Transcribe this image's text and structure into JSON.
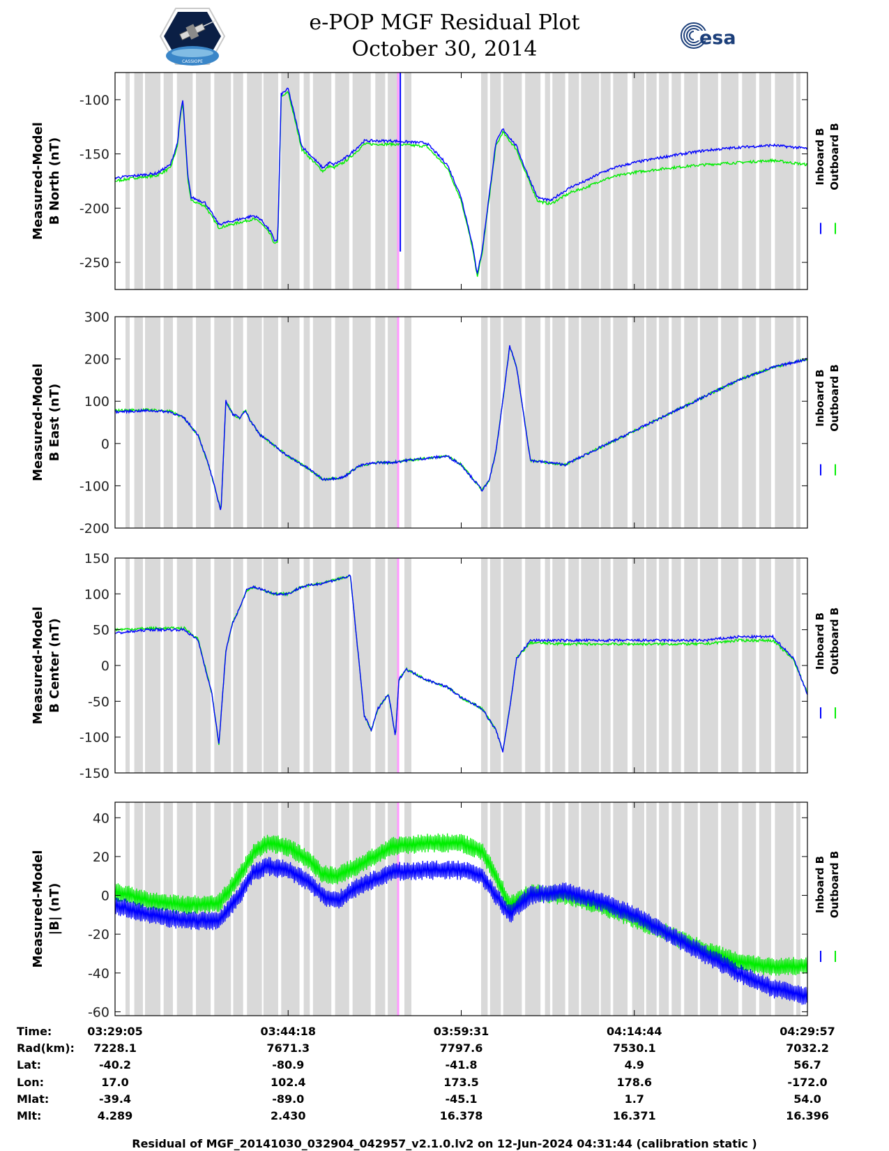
{
  "title_line1": "e-POP MGF Residual Plot",
  "title_line2": "October 30, 2014",
  "logo_right_text": "esa",
  "logo_left_text": "CASSIOPE",
  "footer": "Residual of MGF_20141030_032904_042957_v2.1.0.lv2 on 12-Jun-2024 04:31:44 (calibration static )",
  "colors": {
    "inboard": "#0000ff",
    "outboard": "#00ee00",
    "shade": "#d9d9d9",
    "marker": "#ff99ff"
  },
  "chart_data": {
    "type": "line",
    "x_ticks": [
      "03:29:05",
      "03:44:18",
      "03:59:31",
      "04:14:44",
      "04:29:57"
    ],
    "legend": [
      "Inboard B",
      "Outboard B"
    ],
    "panels": [
      {
        "ylabel": [
          "Measured-Model",
          "B North (nT)"
        ],
        "ylim": [
          -275,
          -75
        ],
        "yticks": [
          -100,
          -150,
          -200,
          -250
        ],
        "x": [
          0,
          3,
          6,
          8,
          9,
          9.5,
          9.8,
          10.5,
          11,
          13,
          15,
          20,
          21,
          22.5,
          23,
          23.5,
          24,
          25,
          27,
          30,
          31,
          31.5,
          33,
          34,
          36,
          40,
          45,
          48,
          50,
          51.5,
          52.3,
          53,
          55,
          56,
          58,
          59,
          60,
          61,
          62,
          63,
          64,
          66,
          68,
          70,
          72,
          75,
          80,
          85,
          90,
          95,
          100
        ],
        "inboard": [
          -172,
          -170,
          -168,
          -160,
          -140,
          -110,
          -100,
          -170,
          -190,
          -195,
          -215,
          -207,
          -210,
          -222,
          -230,
          -229,
          -95,
          -90,
          -143,
          -163,
          -158,
          -160,
          -155,
          -150,
          -138,
          -138,
          -140,
          -160,
          -190,
          -230,
          -260,
          -240,
          -140,
          -127,
          -143,
          -160,
          -175,
          -190,
          -192,
          -193,
          -188,
          -180,
          -175,
          -168,
          -163,
          -158,
          -152,
          -147,
          -144,
          -142,
          -145
        ],
        "outboard": [
          -175,
          -172,
          -170,
          -163,
          -143,
          -112,
          -103,
          -173,
          -193,
          -198,
          -218,
          -210,
          -213,
          -225,
          -233,
          -232,
          -98,
          -93,
          -146,
          -166,
          -161,
          -163,
          -158,
          -153,
          -141,
          -141,
          -143,
          -163,
          -193,
          -233,
          -263,
          -243,
          -143,
          -130,
          -146,
          -163,
          -178,
          -193,
          -195,
          -196,
          -192,
          -185,
          -181,
          -175,
          -171,
          -167,
          -163,
          -160,
          -158,
          -156,
          -160
        ],
        "spike": [
          41.2,
          -75,
          -240
        ]
      },
      {
        "ylabel": [
          "Measured-Model",
          "B East (nT)"
        ],
        "ylim": [
          -200,
          300
        ],
        "yticks": [
          300,
          200,
          100,
          0,
          -100,
          -200
        ],
        "x": [
          0,
          5,
          8,
          10,
          12,
          13.5,
          14.5,
          15.3,
          16,
          17,
          18,
          18.8,
          19.5,
          21,
          25,
          28,
          30,
          33,
          35,
          36,
          38,
          40,
          42,
          45,
          48,
          50,
          52,
          53,
          54,
          55,
          56,
          57,
          58,
          60,
          65,
          70,
          75,
          80,
          85,
          90,
          95,
          100
        ],
        "inboard": [
          75,
          78,
          75,
          60,
          20,
          -50,
          -110,
          -160,
          100,
          70,
          60,
          80,
          55,
          20,
          -30,
          -60,
          -85,
          -80,
          -55,
          -50,
          -45,
          -45,
          -40,
          -35,
          -30,
          -50,
          -90,
          -110,
          -90,
          -20,
          100,
          230,
          180,
          -40,
          -50,
          -10,
          30,
          70,
          110,
          150,
          180,
          200
        ],
        "outboard": [
          78,
          80,
          76,
          60,
          20,
          -50,
          -110,
          -160,
          100,
          70,
          60,
          80,
          55,
          20,
          -30,
          -60,
          -85,
          -80,
          -55,
          -50,
          -45,
          -45,
          -40,
          -35,
          -30,
          -50,
          -90,
          -110,
          -90,
          -20,
          100,
          230,
          180,
          -40,
          -50,
          -10,
          30,
          70,
          110,
          150,
          180,
          200
        ]
      },
      {
        "ylabel": [
          "Measured-Model",
          "B Center (nT)"
        ],
        "ylim": [
          -150,
          150
        ],
        "yticks": [
          150,
          100,
          50,
          0,
          -50,
          -100,
          -150
        ],
        "x": [
          0,
          5,
          10,
          12,
          14,
          15,
          16,
          17,
          18,
          19,
          20,
          23,
          25,
          27,
          30,
          34,
          36,
          37,
          38,
          39.5,
          40.5,
          41,
          42,
          45,
          48,
          50,
          53,
          55,
          56,
          57,
          58,
          60,
          65,
          70,
          75,
          80,
          85,
          90,
          95,
          98,
          100
        ],
        "inboard": [
          45,
          50,
          50,
          35,
          -40,
          -110,
          20,
          60,
          80,
          105,
          110,
          100,
          100,
          110,
          115,
          125,
          -70,
          -90,
          -60,
          -40,
          -100,
          -20,
          -5,
          -20,
          -30,
          -45,
          -60,
          -90,
          -120,
          -60,
          10,
          35,
          35,
          35,
          35,
          35,
          35,
          40,
          40,
          10,
          -40
        ],
        "outboard": [
          50,
          52,
          52,
          37,
          -40,
          -110,
          20,
          60,
          80,
          105,
          110,
          100,
          100,
          110,
          115,
          125,
          -70,
          -90,
          -60,
          -40,
          -100,
          -20,
          -5,
          -20,
          -30,
          -45,
          -60,
          -90,
          -120,
          -60,
          10,
          32,
          30,
          30,
          30,
          30,
          30,
          35,
          35,
          8,
          -38
        ]
      },
      {
        "ylabel": [
          "Measured-Model",
          "|B| (nT)"
        ],
        "ylim": [
          -62,
          48
        ],
        "yticks": [
          40,
          20,
          0,
          -20,
          -40,
          -60
        ],
        "x": [
          0,
          5,
          10,
          15,
          18,
          20,
          22,
          25,
          28,
          30,
          32,
          35,
          40,
          45,
          50,
          53,
          55,
          57,
          58,
          60,
          65,
          70,
          75,
          80,
          85,
          90,
          95,
          100
        ],
        "inboard": [
          -5,
          -10,
          -13,
          -13,
          0,
          12,
          15,
          13,
          7,
          0,
          -3,
          4,
          12,
          13,
          13,
          10,
          0,
          -10,
          -6,
          0,
          2,
          -3,
          -10,
          -20,
          -30,
          -40,
          -48,
          -52
        ],
        "outboard": [
          2,
          -3,
          -5,
          -4,
          10,
          22,
          27,
          25,
          18,
          11,
          10,
          15,
          25,
          27,
          27,
          23,
          10,
          -5,
          -3,
          1,
          0,
          -5,
          -12,
          -20,
          -28,
          -34,
          -37,
          -36
        ],
        "band": 10
      }
    ],
    "table": {
      "labels": [
        "Time:",
        "Rad(km):",
        "Lat:",
        "Lon:",
        "Mlat:",
        "Mlt:"
      ],
      "columns": [
        [
          "03:29:05",
          "7228.1",
          "-40.2",
          "17.0",
          "-39.4",
          "4.289"
        ],
        [
          "03:44:18",
          "7671.3",
          "-80.9",
          "102.4",
          "-89.0",
          "2.430"
        ],
        [
          "03:59:31",
          "7797.6",
          "-41.8",
          "173.5",
          "-45.1",
          "16.378"
        ],
        [
          "04:14:44",
          "7530.1",
          "4.9",
          "178.6",
          "1.7",
          "16.371"
        ],
        [
          "04:29:57",
          "7032.2",
          "56.7",
          "-172.0",
          "54.0",
          "16.396"
        ]
      ]
    }
  }
}
